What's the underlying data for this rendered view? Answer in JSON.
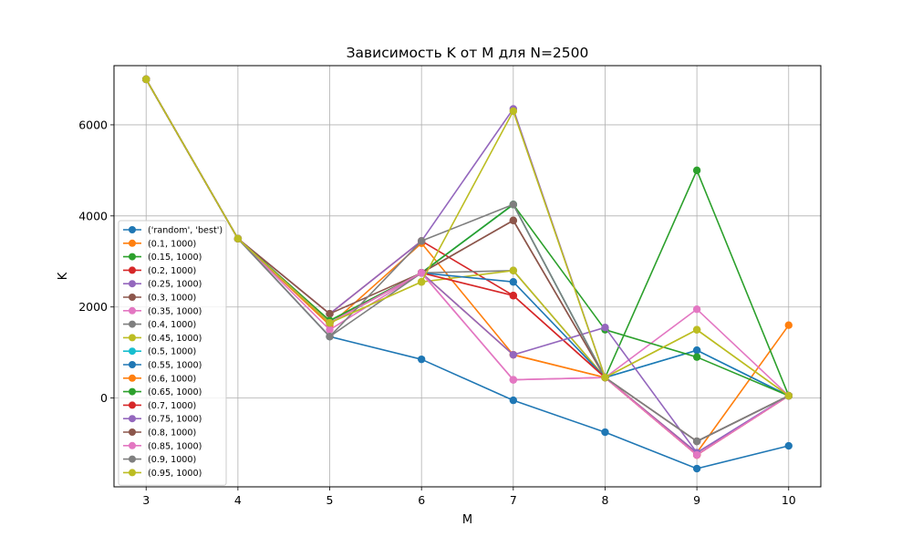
{
  "chart_data": {
    "type": "line",
    "title": "Зависимость K от M для N=2500",
    "xlabel": "M",
    "ylabel": "K",
    "x": [
      3,
      4,
      5,
      6,
      7,
      8,
      9,
      10
    ],
    "xlim": [
      2.65,
      10.35
    ],
    "ylim": [
      -1950,
      7300
    ],
    "xticks": [
      "3",
      "4",
      "5",
      "6",
      "7",
      "8",
      "9",
      "10"
    ],
    "yticks": [
      0,
      2000,
      4000,
      6000
    ],
    "ytick_labels": [
      "0",
      "2000",
      "4000",
      "6000"
    ],
    "grid": true,
    "legend_position": "center-left",
    "series": [
      {
        "name": "('random', 'best')",
        "color": "#1f77b4",
        "values": [
          7000,
          3500,
          1350,
          850,
          -50,
          -750,
          -1550,
          -1050
        ]
      },
      {
        "name": "(0.1, 1000)",
        "color": "#ff7f0e",
        "values": [
          7000,
          3500,
          1600,
          3400,
          950,
          450,
          -1200,
          1600
        ]
      },
      {
        "name": "(0.15, 1000)",
        "color": "#2ca02c",
        "values": [
          7000,
          3500,
          1700,
          2750,
          4250,
          450,
          5000,
          50
        ]
      },
      {
        "name": "(0.2, 1000)",
        "color": "#d62728",
        "values": [
          7000,
          3500,
          1850,
          3450,
          2250,
          450,
          -1250,
          50
        ]
      },
      {
        "name": "(0.25, 1000)",
        "color": "#9467bd",
        "values": [
          7000,
          3500,
          1850,
          3450,
          6350,
          450,
          -1200,
          50
        ]
      },
      {
        "name": "(0.3, 1000)",
        "color": "#8c564b",
        "values": [
          7000,
          3500,
          1850,
          2750,
          3900,
          450,
          -950,
          50
        ]
      },
      {
        "name": "(0.35, 1000)",
        "color": "#e377c2",
        "values": [
          7000,
          3500,
          1500,
          2750,
          400,
          450,
          1950,
          50
        ]
      },
      {
        "name": "(0.4, 1000)",
        "color": "#7f7f7f",
        "values": [
          7000,
          3500,
          1350,
          2750,
          2800,
          450,
          -950,
          50
        ]
      },
      {
        "name": "(0.45, 1000)",
        "color": "#bcbd22",
        "values": [
          7000,
          3500,
          1650,
          2550,
          2800,
          450,
          1500,
          50
        ]
      },
      {
        "name": "(0.5, 1000)",
        "color": "#17becf",
        "values": [
          7000,
          3500,
          1650,
          2750,
          4250,
          450,
          1050,
          50
        ]
      },
      {
        "name": "(0.55, 1000)",
        "color": "#1f77b4",
        "values": [
          7000,
          3500,
          1650,
          2750,
          2550,
          450,
          1050,
          50
        ]
      },
      {
        "name": "(0.6, 1000)",
        "color": "#ff7f0e",
        "values": [
          7000,
          3500,
          1650,
          2750,
          950,
          450,
          -1250,
          50
        ]
      },
      {
        "name": "(0.65, 1000)",
        "color": "#2ca02c",
        "values": [
          7000,
          3500,
          1700,
          2750,
          4250,
          1500,
          900,
          50
        ]
      },
      {
        "name": "(0.7, 1000)",
        "color": "#d62728",
        "values": [
          7000,
          3500,
          1650,
          2750,
          2250,
          450,
          -1250,
          50
        ]
      },
      {
        "name": "(0.75, 1000)",
        "color": "#9467bd",
        "values": [
          7000,
          3500,
          1650,
          2750,
          950,
          1550,
          -1200,
          50
        ]
      },
      {
        "name": "(0.8, 1000)",
        "color": "#8c564b",
        "values": [
          7000,
          3500,
          1650,
          2750,
          3900,
          450,
          -950,
          50
        ]
      },
      {
        "name": "(0.85, 1000)",
        "color": "#e377c2",
        "values": [
          7000,
          3500,
          1650,
          2750,
          400,
          450,
          -1250,
          50
        ]
      },
      {
        "name": "(0.9, 1000)",
        "color": "#7f7f7f",
        "values": [
          7000,
          3500,
          1350,
          3450,
          4250,
          450,
          -950,
          50
        ]
      },
      {
        "name": "(0.95, 1000)",
        "color": "#bcbd22",
        "values": [
          7000,
          3500,
          1650,
          2550,
          6300,
          450,
          1500,
          50
        ]
      }
    ]
  }
}
